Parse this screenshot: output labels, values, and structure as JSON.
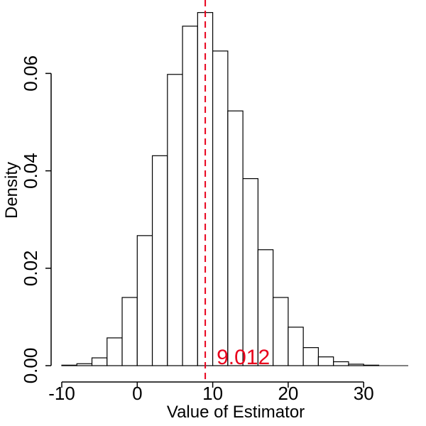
{
  "chart_data": {
    "type": "bar",
    "title": "",
    "xlabel": "Value of Estimator",
    "ylabel": "Density",
    "xlim": [
      -10,
      36
    ],
    "ylim": [
      0,
      0.073
    ],
    "x_ticks": [
      -10,
      0,
      10,
      20,
      30
    ],
    "x_tick_labels": [
      "-10",
      "0",
      "10",
      "20",
      "30"
    ],
    "y_ticks": [
      0,
      0.02,
      0.04,
      0.06
    ],
    "y_tick_labels": [
      "0.00",
      "0.02",
      "0.04",
      "0.06"
    ],
    "bin_width": 2,
    "bins": [
      {
        "x0": -10,
        "x1": -8,
        "density": 0.0001
      },
      {
        "x0": -8,
        "x1": -6,
        "density": 0.0004
      },
      {
        "x0": -6,
        "x1": -4,
        "density": 0.0016
      },
      {
        "x0": -4,
        "x1": -2,
        "density": 0.0057
      },
      {
        "x0": -2,
        "x1": 0,
        "density": 0.014
      },
      {
        "x0": 0,
        "x1": 2,
        "density": 0.0267
      },
      {
        "x0": 2,
        "x1": 4,
        "density": 0.0431
      },
      {
        "x0": 4,
        "x1": 6,
        "density": 0.0598
      },
      {
        "x0": 6,
        "x1": 8,
        "density": 0.0697
      },
      {
        "x0": 8,
        "x1": 10,
        "density": 0.0725
      },
      {
        "x0": 10,
        "x1": 12,
        "density": 0.0646
      },
      {
        "x0": 12,
        "x1": 14,
        "density": 0.0523
      },
      {
        "x0": 14,
        "x1": 16,
        "density": 0.0384
      },
      {
        "x0": 16,
        "x1": 18,
        "density": 0.0238
      },
      {
        "x0": 18,
        "x1": 20,
        "density": 0.014
      },
      {
        "x0": 20,
        "x1": 22,
        "density": 0.0079
      },
      {
        "x0": 22,
        "x1": 24,
        "density": 0.0037
      },
      {
        "x0": 24,
        "x1": 26,
        "density": 0.0018
      },
      {
        "x0": 26,
        "x1": 28,
        "density": 0.0008
      },
      {
        "x0": 28,
        "x1": 30,
        "density": 0.0003
      },
      {
        "x0": 30,
        "x1": 32,
        "density": 0.0001
      }
    ],
    "reference_line": {
      "x": 9.012,
      "label": "9.012",
      "color": "#e8001c",
      "style": "dashed"
    },
    "fill_color": "#ffffff",
    "stroke_color": "#000000",
    "grid": false,
    "legend": "none"
  }
}
